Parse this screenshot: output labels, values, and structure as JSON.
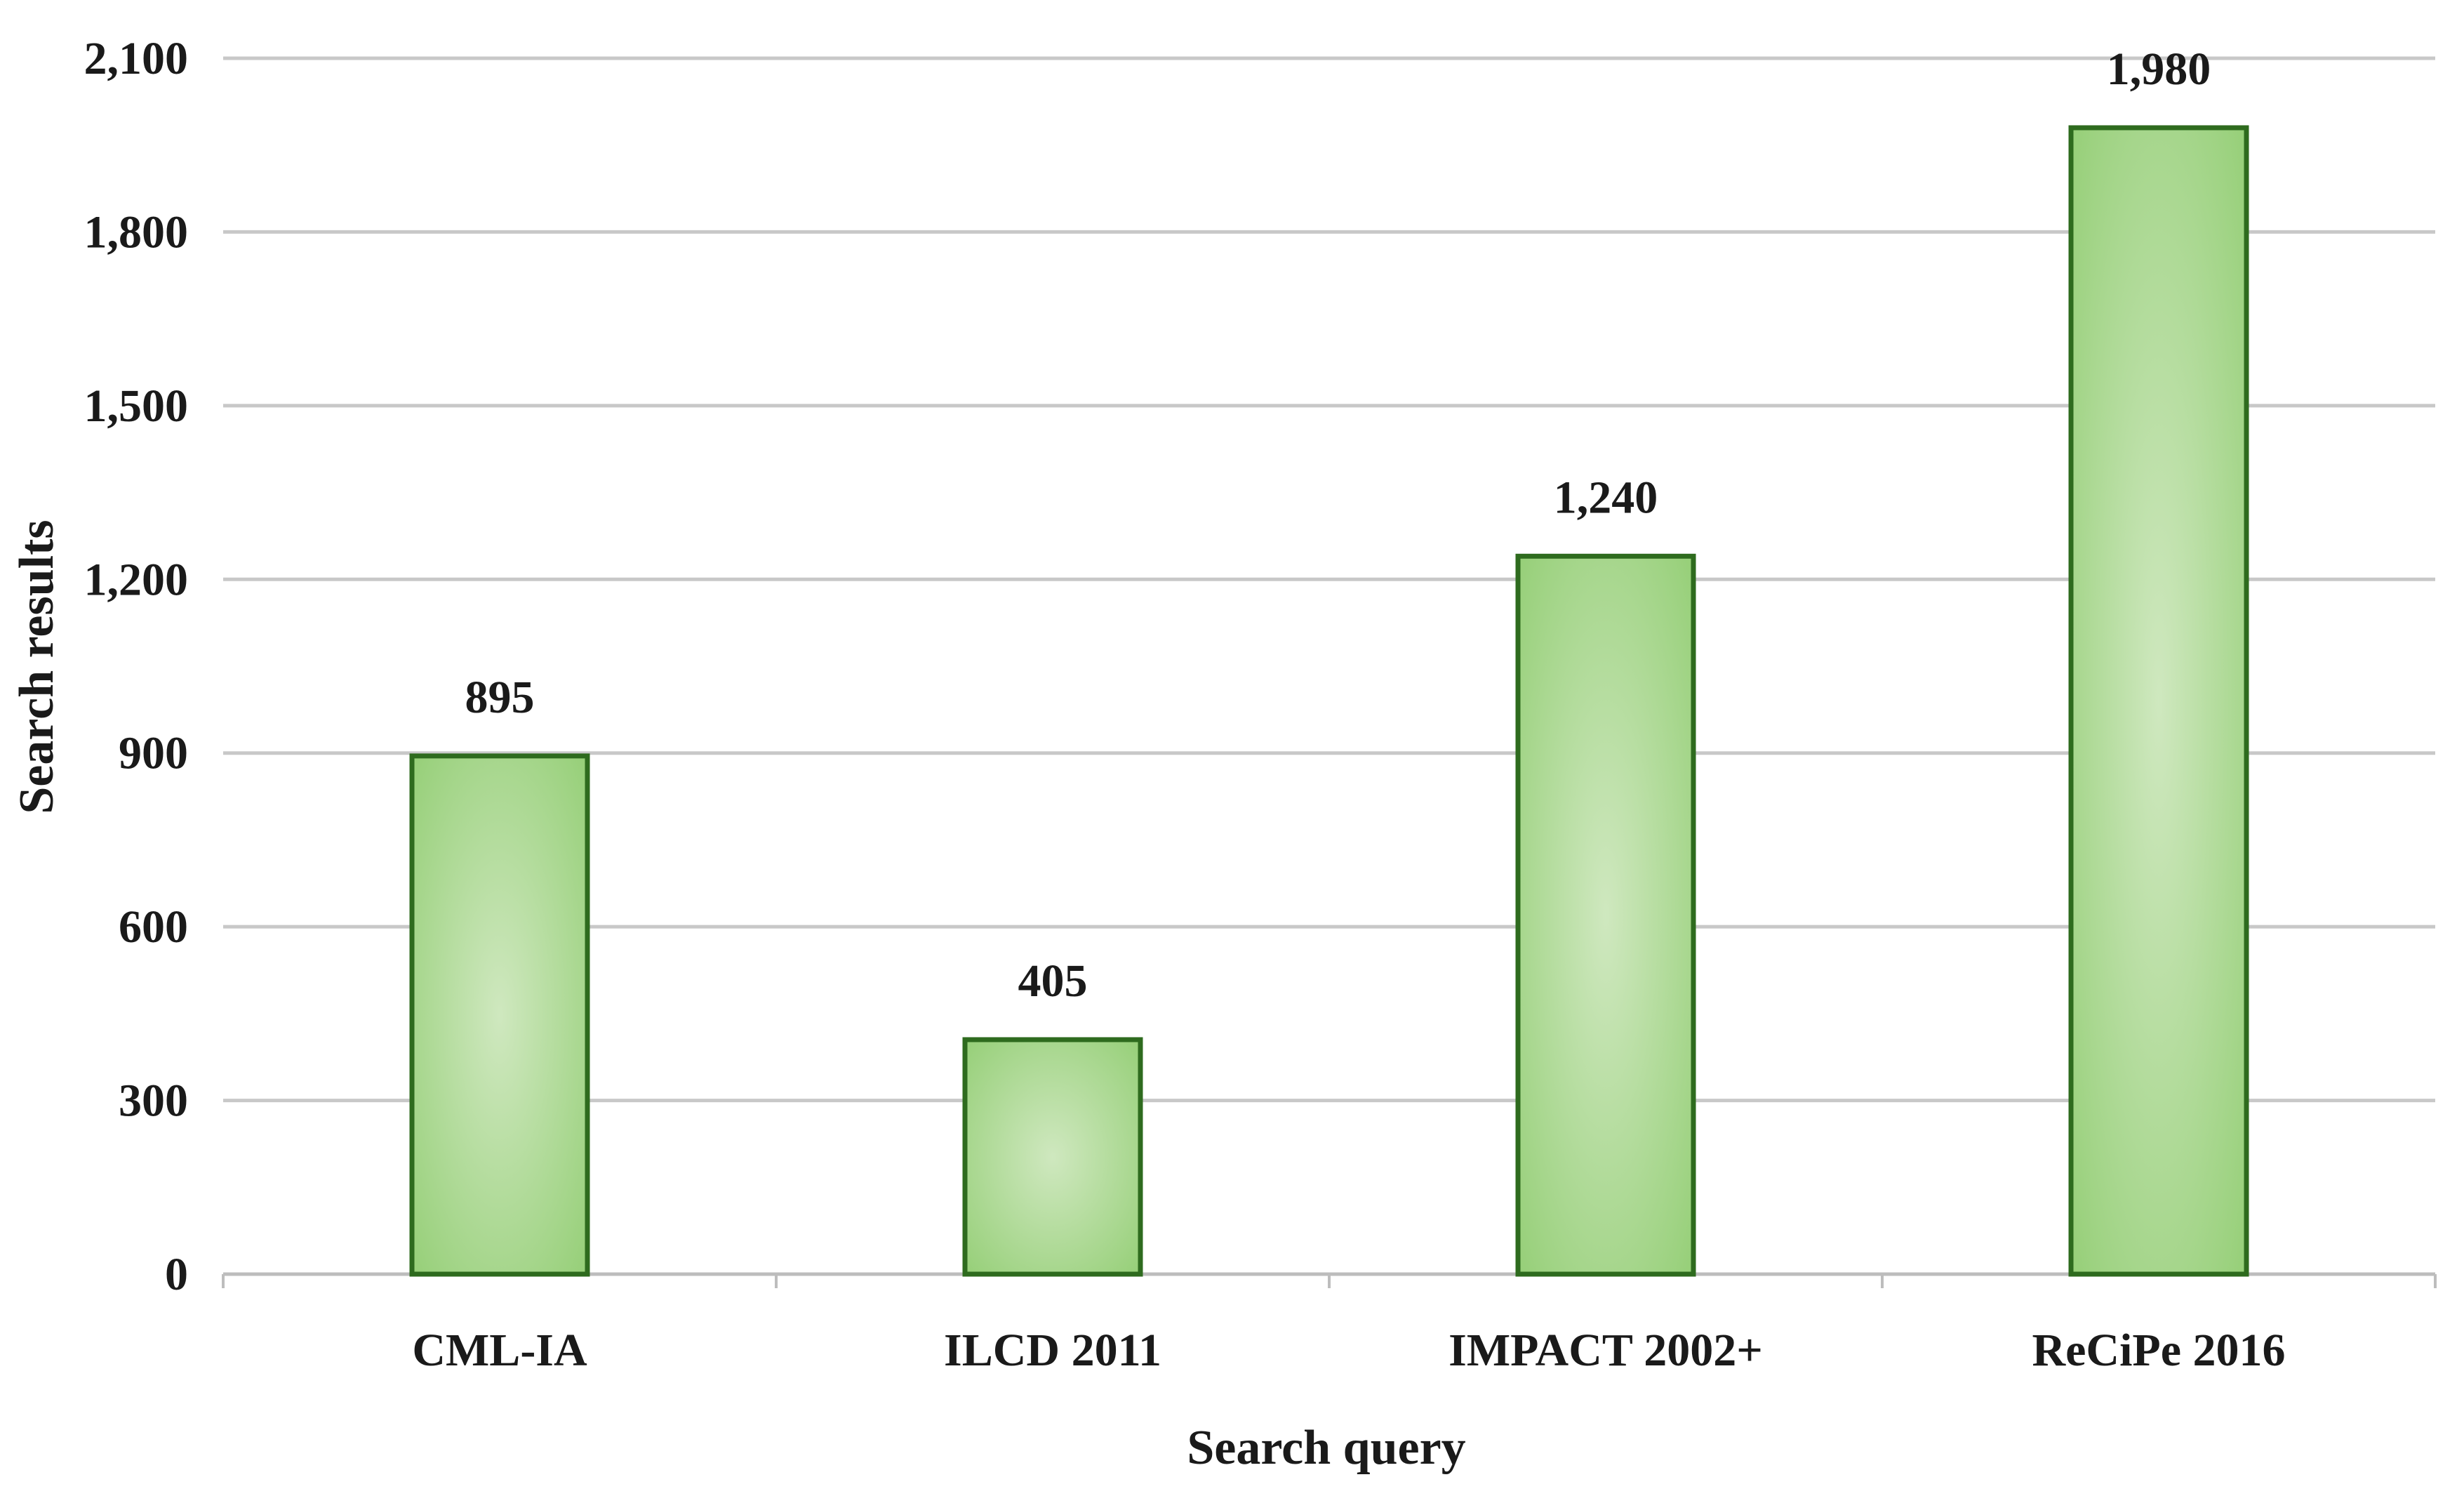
{
  "chart_data": {
    "type": "bar",
    "title": "",
    "xlabel": "Search query",
    "ylabel": "Search results",
    "categories": [
      "CML-IA",
      "ILCD 2011",
      "IMPACT 2002+",
      "ReCiPe 2016"
    ],
    "values": [
      895,
      405,
      1240,
      1980
    ],
    "data_labels": [
      "895",
      "405",
      "1,240",
      "1,980"
    ],
    "ylim": [
      0,
      2100
    ],
    "yticks": [
      0,
      300,
      600,
      900,
      1200,
      1500,
      1800,
      2100
    ],
    "ytick_labels": [
      "0",
      "300",
      "600",
      "900",
      "1,200",
      "1,500",
      "1,800",
      "2,100"
    ],
    "grid": true,
    "legend": "none",
    "colors": {
      "bar_fill_center": "#cfe8bf",
      "bar_fill_edge": "#96cf78",
      "bar_stroke": "#2e6b1e",
      "grid": "#c8c8c8"
    }
  }
}
